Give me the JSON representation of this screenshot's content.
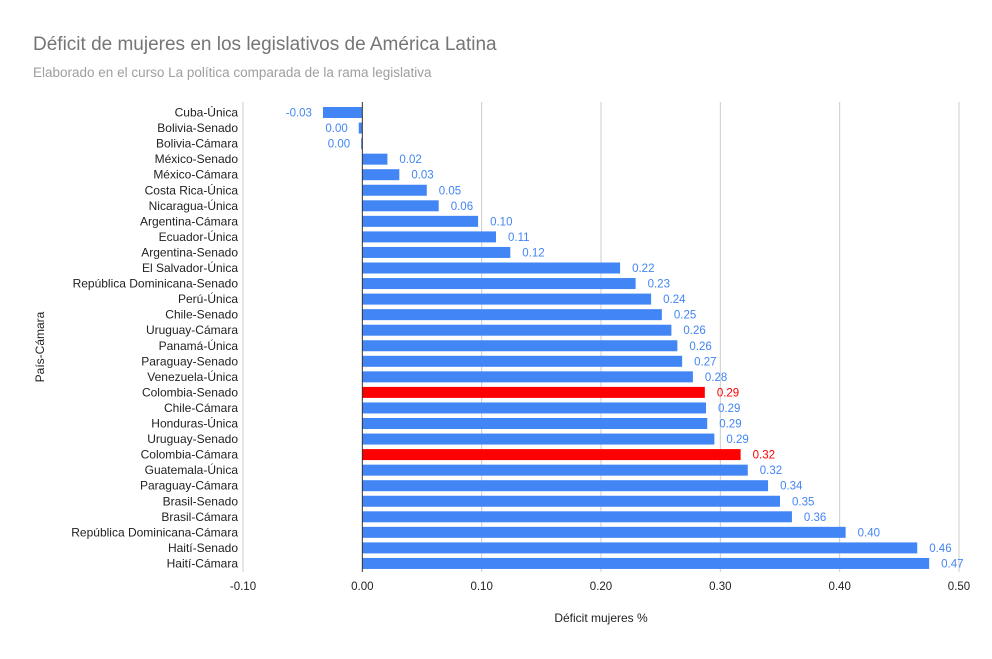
{
  "chart_data": {
    "type": "bar",
    "orientation": "horizontal",
    "title": "Déficit de mujeres en los legislativos de América Latina",
    "subtitle": "Elaborado en el curso La política comparada de la rama legislativa",
    "xlabel": "Déficit mujeres %",
    "ylabel": "País-Cámara",
    "xlim": [
      -0.1,
      0.5
    ],
    "xticks": [
      "-0.10",
      "0.00",
      "0.10",
      "0.20",
      "0.30",
      "0.40",
      "0.50"
    ],
    "grid": true,
    "colors": {
      "default": "#4285f4",
      "highlight": "#ff0000",
      "label_default": "#4285f4",
      "label_highlight": "#ff0000"
    },
    "categories": [
      "Cuba-Única",
      "Bolivia-Senado",
      "Bolivia-Cámara",
      "México-Senado",
      "México-Cámara",
      "Costa Rica-Única",
      "Nicaragua-Única",
      "Argentina-Cámara",
      "Ecuador-Única",
      "Argentina-Senado",
      "El Salvador-Única",
      "República Dominicana-Senado",
      "Perú-Única",
      "Chile-Senado",
      "Uruguay-Cámara",
      "Panamá-Única",
      "Paraguay-Senado",
      "Venezuela-Única",
      "Colombia-Senado",
      "Chile-Cámara",
      "Honduras-Única",
      "Uruguay-Senado",
      "Colombia-Cámara",
      "Guatemala-Única",
      "Paraguay-Cámara",
      "Brasil-Senado",
      "Brasil-Cámara",
      "República Dominicana-Cámara",
      "Haití-Senado",
      "Haití-Cámara"
    ],
    "values": [
      -0.033,
      -0.003,
      -0.001,
      0.021,
      0.031,
      0.054,
      0.064,
      0.097,
      0.112,
      0.124,
      0.216,
      0.229,
      0.242,
      0.251,
      0.259,
      0.264,
      0.268,
      0.277,
      0.287,
      0.288,
      0.289,
      0.295,
      0.317,
      0.323,
      0.34,
      0.35,
      0.36,
      0.405,
      0.465,
      0.475
    ],
    "labels": [
      "-0.03",
      "0.00",
      "0.00",
      "0.02",
      "0.03",
      "0.05",
      "0.06",
      "0.10",
      "0.11",
      "0.12",
      "0.22",
      "0.23",
      "0.24",
      "0.25",
      "0.26",
      "0.26",
      "0.27",
      "0.28",
      "0.29",
      "0.29",
      "0.29",
      "0.29",
      "0.32",
      "0.32",
      "0.34",
      "0.35",
      "0.36",
      "0.40",
      "0.46",
      "0.47"
    ],
    "highlighted": [
      "Colombia-Senado",
      "Colombia-Cámara"
    ]
  }
}
